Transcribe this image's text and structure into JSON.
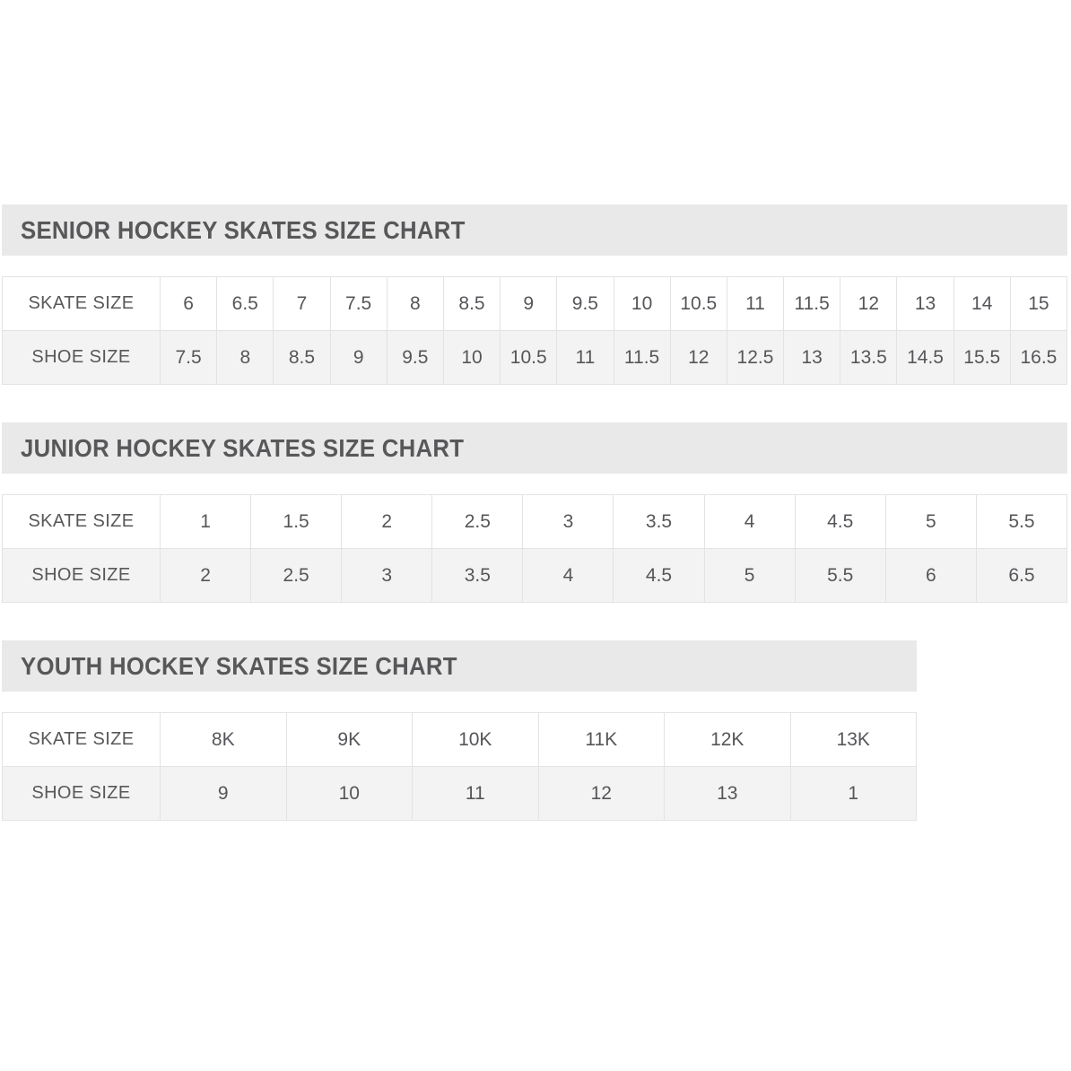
{
  "styles": {
    "band_bg": "#e9e9e9",
    "alt_row_bg": "#f3f3f3",
    "border_color": "#e3e3e3",
    "text_color": "#58585a",
    "page_bg": "#ffffff"
  },
  "sections": [
    {
      "id": "senior",
      "title": "SENIOR HOCKEY SKATES SIZE CHART",
      "rows": [
        {
          "label": "SKATE SIZE",
          "values": [
            "6",
            "6.5",
            "7",
            "7.5",
            "8",
            "8.5",
            "9",
            "9.5",
            "10",
            "10.5",
            "11",
            "11.5",
            "12",
            "13",
            "14",
            "15"
          ]
        },
        {
          "label": "SHOE SIZE",
          "values": [
            "7.5",
            "8",
            "8.5",
            "9",
            "9.5",
            "10",
            "10.5",
            "11",
            "11.5",
            "12",
            "12.5",
            "13",
            "13.5",
            "14.5",
            "15.5",
            "16.5"
          ]
        }
      ]
    },
    {
      "id": "junior",
      "title": "JUNIOR HOCKEY SKATES SIZE CHART",
      "rows": [
        {
          "label": "SKATE SIZE",
          "values": [
            "1",
            "1.5",
            "2",
            "2.5",
            "3",
            "3.5",
            "4",
            "4.5",
            "5",
            "5.5"
          ]
        },
        {
          "label": "SHOE SIZE",
          "values": [
            "2",
            "2.5",
            "3",
            "3.5",
            "4",
            "4.5",
            "5",
            "5.5",
            "6",
            "6.5"
          ]
        }
      ]
    },
    {
      "id": "youth",
      "title": "YOUTH HOCKEY SKATES SIZE CHART",
      "rows": [
        {
          "label": "SKATE SIZE",
          "values": [
            "8K",
            "9K",
            "10K",
            "11K",
            "12K",
            "13K"
          ]
        },
        {
          "label": "SHOE SIZE",
          "values": [
            "9",
            "10",
            "11",
            "12",
            "13",
            "1"
          ]
        }
      ]
    }
  ]
}
